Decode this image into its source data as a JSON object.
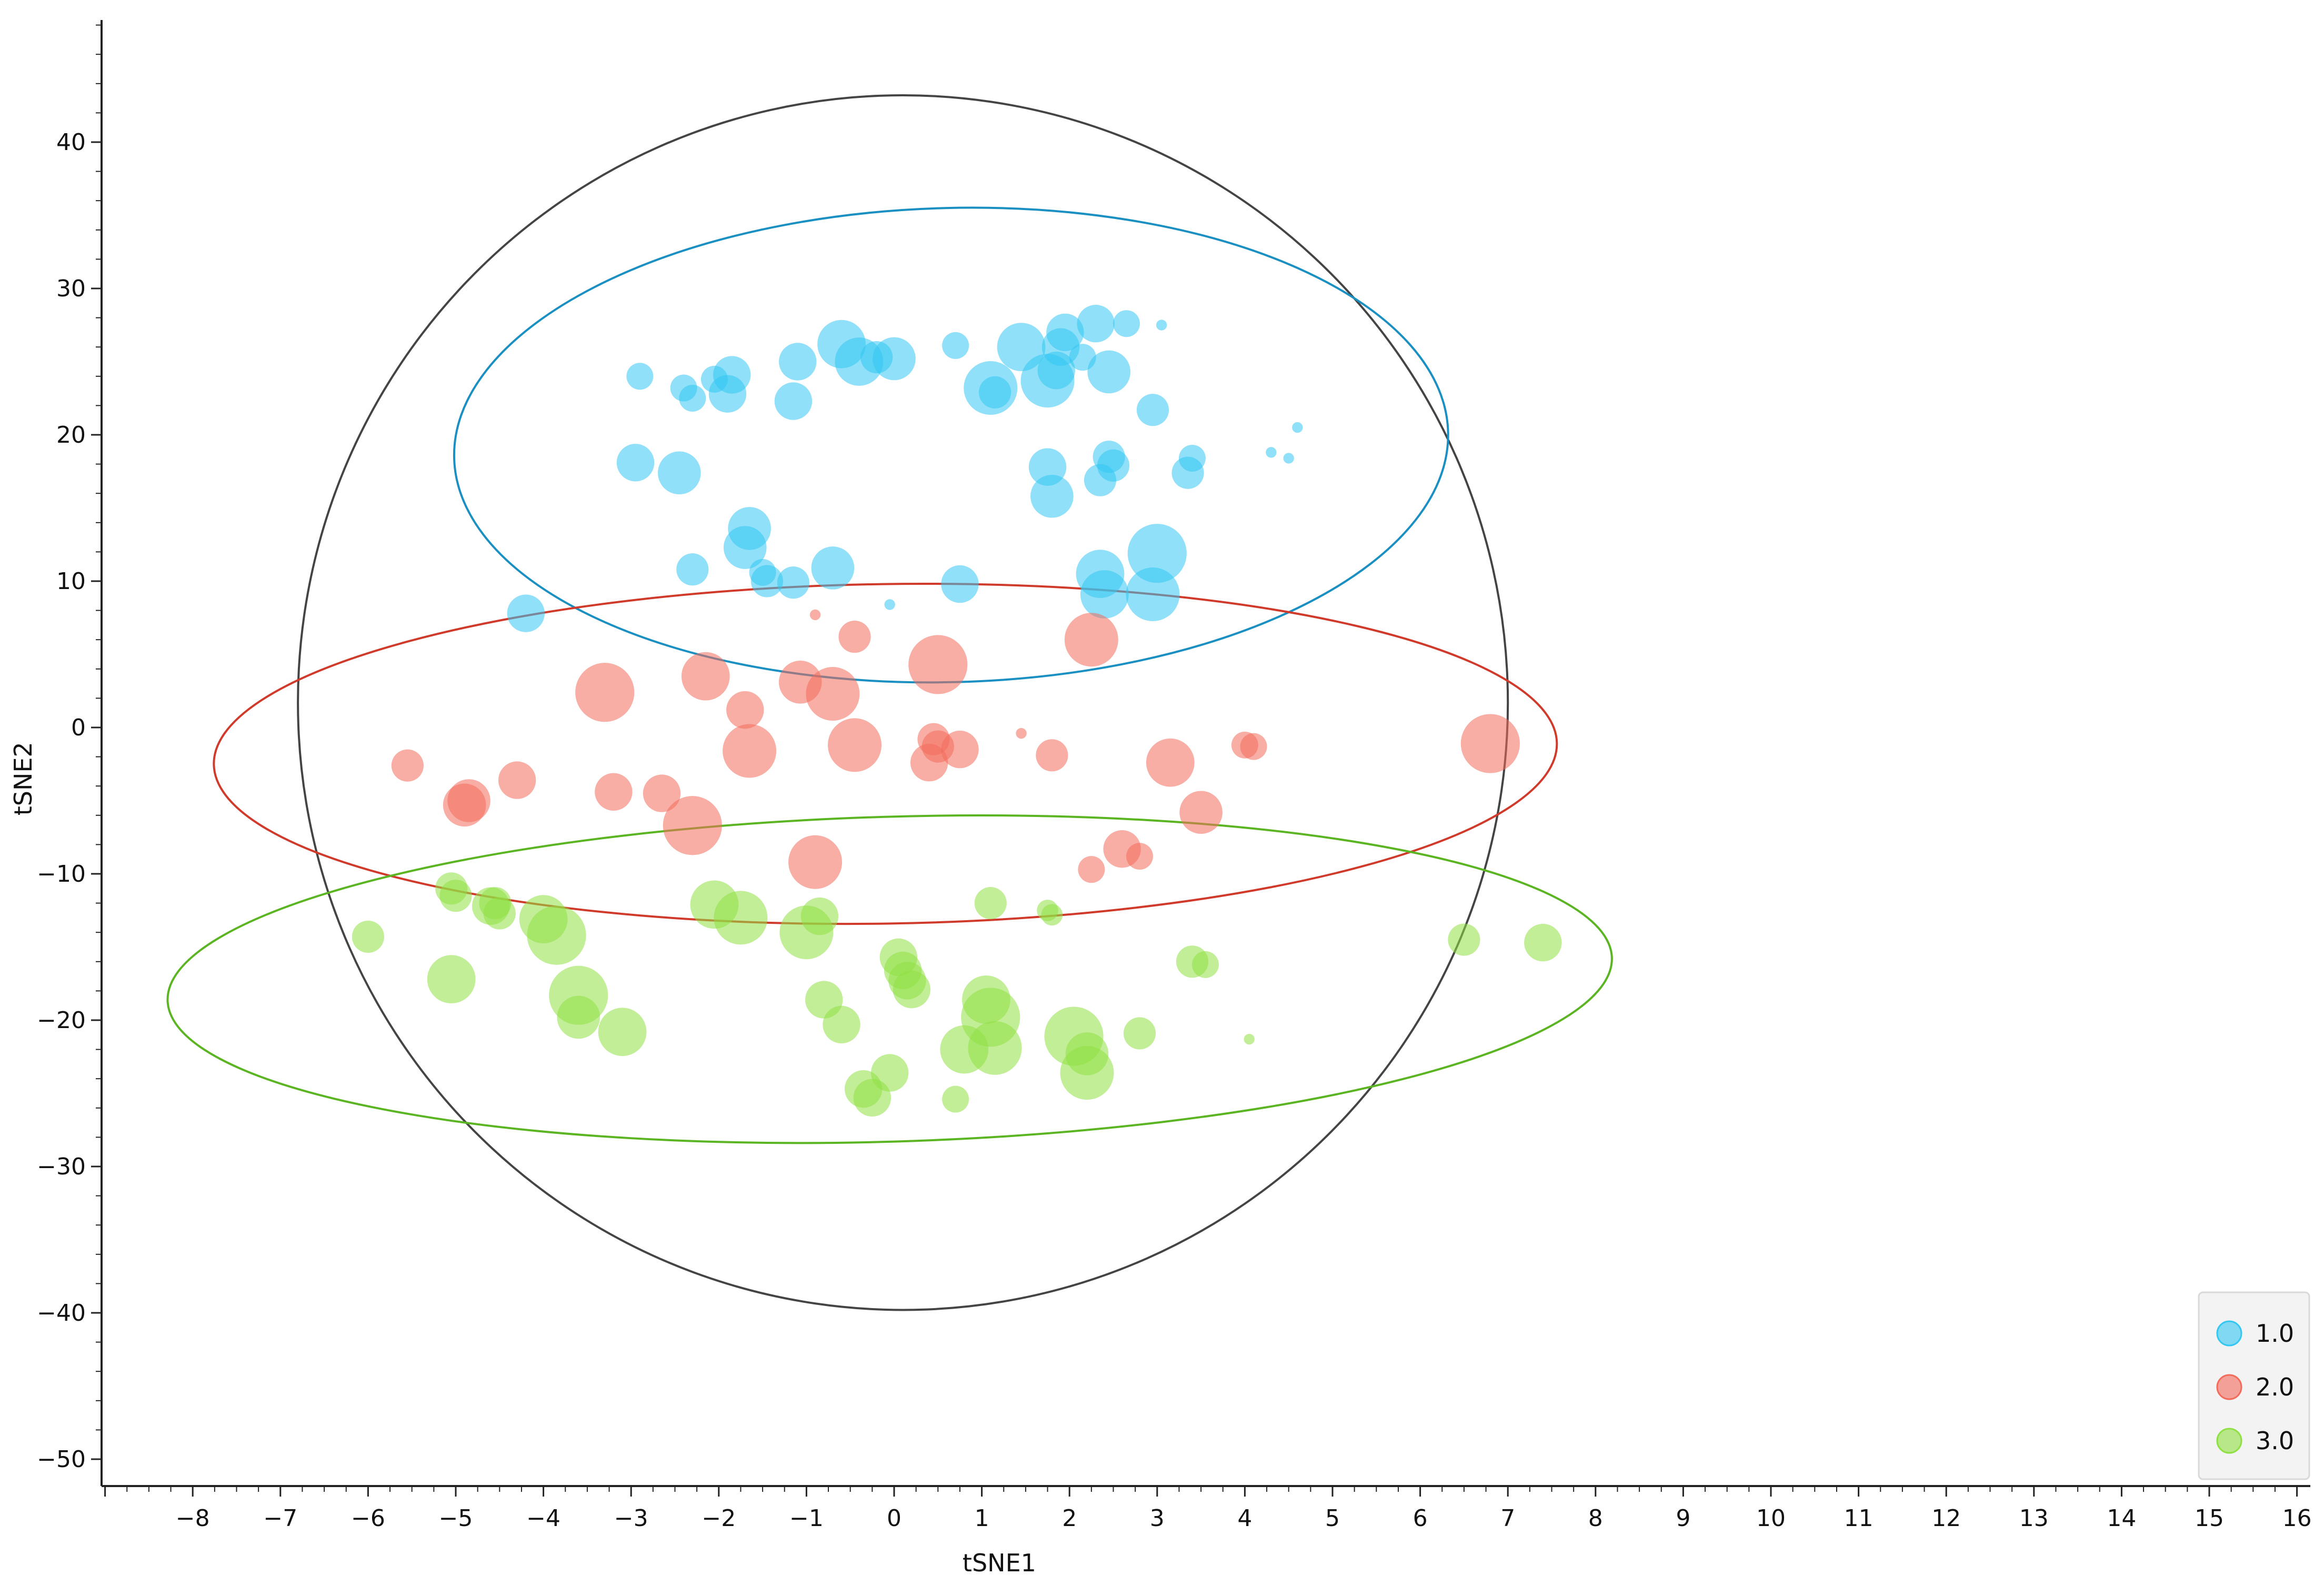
{
  "colors": {
    "axis": "#222222",
    "series_1": "#33c7f2",
    "series_2": "#f36b5b",
    "series_3": "#8fe043",
    "ellipse_1": "#1a8fc2",
    "ellipse_2": "#d03a2a",
    "ellipse_3": "#5bb522",
    "ellipse_all": "#444444",
    "legend_bg": "#f3f3f3",
    "legend_border": "#d9d9d9"
  },
  "chart_data": {
    "type": "scatter",
    "xlabel": "tSNE1",
    "ylabel": "tSNE2",
    "xlim": [
      -9,
      16.2
    ],
    "ylim": [
      -51,
      48
    ],
    "xticks": [
      -8,
      -7,
      -6,
      -5,
      -4,
      -3,
      -2,
      -1,
      0,
      1,
      2,
      3,
      4,
      5,
      6,
      7,
      8,
      9,
      10,
      11,
      12,
      13,
      14,
      15,
      16
    ],
    "yticks": [
      -50,
      -40,
      -30,
      -20,
      -10,
      0,
      10,
      20,
      30,
      40
    ],
    "grid": false,
    "legend_position": "bottom-right",
    "series": [
      {
        "name": "1.0",
        "color_key": "series_1",
        "points": [
          [
            -2.9,
            24,
            5
          ],
          [
            -2.4,
            23.2,
            5
          ],
          [
            -2.3,
            22.5,
            5
          ],
          [
            -2.05,
            23.8,
            5
          ],
          [
            -1.9,
            22.8,
            7
          ],
          [
            -1.85,
            24.1,
            7
          ],
          [
            -1.15,
            22.3,
            7
          ],
          [
            -1.1,
            25,
            7
          ],
          [
            -0.6,
            26.2,
            9
          ],
          [
            -0.4,
            25,
            9
          ],
          [
            -0.2,
            25.3,
            6
          ],
          [
            0.0,
            25.2,
            8
          ],
          [
            0.7,
            26.1,
            5
          ],
          [
            1.1,
            23.2,
            10
          ],
          [
            1.15,
            22.9,
            6
          ],
          [
            1.45,
            26,
            9
          ],
          [
            1.75,
            23.7,
            10
          ],
          [
            1.85,
            24.4,
            7
          ],
          [
            1.9,
            26,
            7
          ],
          [
            1.95,
            27,
            7
          ],
          [
            2.15,
            25.3,
            5
          ],
          [
            2.3,
            27.6,
            7
          ],
          [
            2.45,
            24.3,
            8
          ],
          [
            2.65,
            27.6,
            5
          ],
          [
            3.05,
            27.5,
            2
          ],
          [
            2.95,
            21.7,
            6
          ],
          [
            -2.95,
            18.1,
            7
          ],
          [
            -2.45,
            17.4,
            8
          ],
          [
            1.75,
            17.8,
            7
          ],
          [
            1.8,
            15.8,
            8
          ],
          [
            2.35,
            16.9,
            6
          ],
          [
            2.45,
            18.5,
            6
          ],
          [
            2.5,
            17.9,
            6
          ],
          [
            3.35,
            17.4,
            6
          ],
          [
            3.4,
            18.4,
            5
          ],
          [
            4.3,
            18.8,
            2
          ],
          [
            4.5,
            18.4,
            2
          ],
          [
            4.6,
            20.5,
            2
          ],
          [
            -1.65,
            13.6,
            8
          ],
          [
            -1.7,
            12.3,
            8
          ],
          [
            -1.5,
            10.6,
            5
          ],
          [
            -1.45,
            10,
            6
          ],
          [
            -1.15,
            9.9,
            6
          ],
          [
            -0.7,
            10.9,
            8
          ],
          [
            -2.3,
            10.8,
            6
          ],
          [
            0.75,
            9.8,
            7
          ],
          [
            2.35,
            10.5,
            9
          ],
          [
            2.4,
            9.1,
            9
          ],
          [
            2.95,
            9.1,
            10
          ],
          [
            3.0,
            11.9,
            11
          ],
          [
            -0.05,
            8.4,
            2
          ],
          [
            -4.2,
            7.8,
            7
          ]
        ]
      },
      {
        "name": "2.0",
        "color_key": "series_2",
        "points": [
          [
            -0.9,
            7.7,
            2
          ],
          [
            -0.45,
            6.2,
            6
          ],
          [
            0.5,
            4.3,
            11
          ],
          [
            2.25,
            6.0,
            10
          ],
          [
            -3.3,
            2.4,
            11
          ],
          [
            -2.15,
            3.5,
            9
          ],
          [
            -1.7,
            1.2,
            7
          ],
          [
            -1.07,
            3.1,
            8
          ],
          [
            -0.7,
            2.3,
            10
          ],
          [
            1.45,
            -0.4,
            2
          ],
          [
            0.45,
            -0.8,
            6
          ],
          [
            0.5,
            -1.3,
            6
          ],
          [
            0.75,
            -1.5,
            7
          ],
          [
            0.4,
            -2.4,
            7
          ],
          [
            -1.65,
            -1.6,
            10
          ],
          [
            -0.45,
            -1.2,
            10
          ],
          [
            1.8,
            -1.9,
            6
          ],
          [
            3.15,
            -2.4,
            9
          ],
          [
            4.0,
            -1.2,
            5
          ],
          [
            4.1,
            -1.3,
            5
          ],
          [
            6.8,
            -1.1,
            11
          ],
          [
            -5.55,
            -2.6,
            6
          ],
          [
            -4.85,
            -5.0,
            8
          ],
          [
            -4.9,
            -5.3,
            8
          ],
          [
            -4.3,
            -3.6,
            7
          ],
          [
            -3.2,
            -4.4,
            7
          ],
          [
            -2.65,
            -4.5,
            7
          ],
          [
            -2.3,
            -6.7,
            11
          ],
          [
            -0.9,
            -9.2,
            10
          ],
          [
            2.25,
            -9.7,
            5
          ],
          [
            2.6,
            -8.3,
            7
          ],
          [
            2.8,
            -8.8,
            5
          ],
          [
            3.5,
            -5.8,
            8
          ]
        ]
      },
      {
        "name": "3.0",
        "color_key": "series_3",
        "points": [
          [
            -6.0,
            -14.3,
            6
          ],
          [
            -5.05,
            -11.0,
            6
          ],
          [
            -5.0,
            -11.5,
            6
          ],
          [
            -4.6,
            -12.2,
            7
          ],
          [
            -4.55,
            -12.0,
            6
          ],
          [
            -4.5,
            -12.7,
            6
          ],
          [
            -4.0,
            -13.1,
            9
          ],
          [
            -3.85,
            -14.2,
            11
          ],
          [
            -3.6,
            -18.3,
            11
          ],
          [
            -3.6,
            -19.8,
            8
          ],
          [
            -3.1,
            -20.8,
            9
          ],
          [
            -5.05,
            -17.2,
            9
          ],
          [
            -2.05,
            -12.1,
            9
          ],
          [
            -1.75,
            -13.0,
            10
          ],
          [
            -1.0,
            -14.0,
            10
          ],
          [
            -0.85,
            -12.9,
            7
          ],
          [
            -0.8,
            -18.6,
            7
          ],
          [
            -0.6,
            -20.3,
            7
          ],
          [
            0.05,
            -15.7,
            7
          ],
          [
            0.1,
            -16.6,
            7
          ],
          [
            0.15,
            -17.3,
            7
          ],
          [
            0.2,
            -17.9,
            7
          ],
          [
            -0.05,
            -23.6,
            7
          ],
          [
            -0.35,
            -24.7,
            7
          ],
          [
            -0.25,
            -25.3,
            7
          ],
          [
            0.7,
            -25.4,
            5
          ],
          [
            0.8,
            -22.0,
            9
          ],
          [
            1.05,
            -18.6,
            9
          ],
          [
            1.1,
            -19.8,
            11
          ],
          [
            1.15,
            -21.9,
            10
          ],
          [
            2.05,
            -21.1,
            11
          ],
          [
            2.2,
            -22.3,
            8
          ],
          [
            2.2,
            -23.6,
            10
          ],
          [
            1.1,
            -12.0,
            6
          ],
          [
            1.75,
            -12.5,
            4
          ],
          [
            1.8,
            -12.8,
            4
          ],
          [
            2.8,
            -20.9,
            6
          ],
          [
            3.4,
            -16.0,
            6
          ],
          [
            3.55,
            -16.2,
            5
          ],
          [
            4.05,
            -21.3,
            2
          ],
          [
            6.5,
            -14.5,
            6
          ],
          [
            7.4,
            -14.7,
            7
          ]
        ]
      }
    ],
    "ellipses": [
      {
        "label": "all",
        "color_key": "ellipse_all",
        "cx": 0.1,
        "cy": 1.7,
        "rx": 6.9,
        "ry": 41.5,
        "rotate_deg": -2.2
      },
      {
        "label": "1.0",
        "color_key": "ellipse_1",
        "cx": 0.65,
        "cy": 19.3,
        "rx": 5.67,
        "ry": 16.2,
        "rotate_deg": -1.5
      },
      {
        "label": "2.0",
        "color_key": "ellipse_2",
        "cx": -0.1,
        "cy": -1.8,
        "rx": 7.66,
        "ry": 11.6,
        "rotate_deg": -0.9
      },
      {
        "label": "3.0",
        "color_key": "ellipse_3",
        "cx": -0.05,
        "cy": -17.2,
        "rx": 8.24,
        "ry": 11.1,
        "rotate_deg": -1.7
      }
    ]
  }
}
